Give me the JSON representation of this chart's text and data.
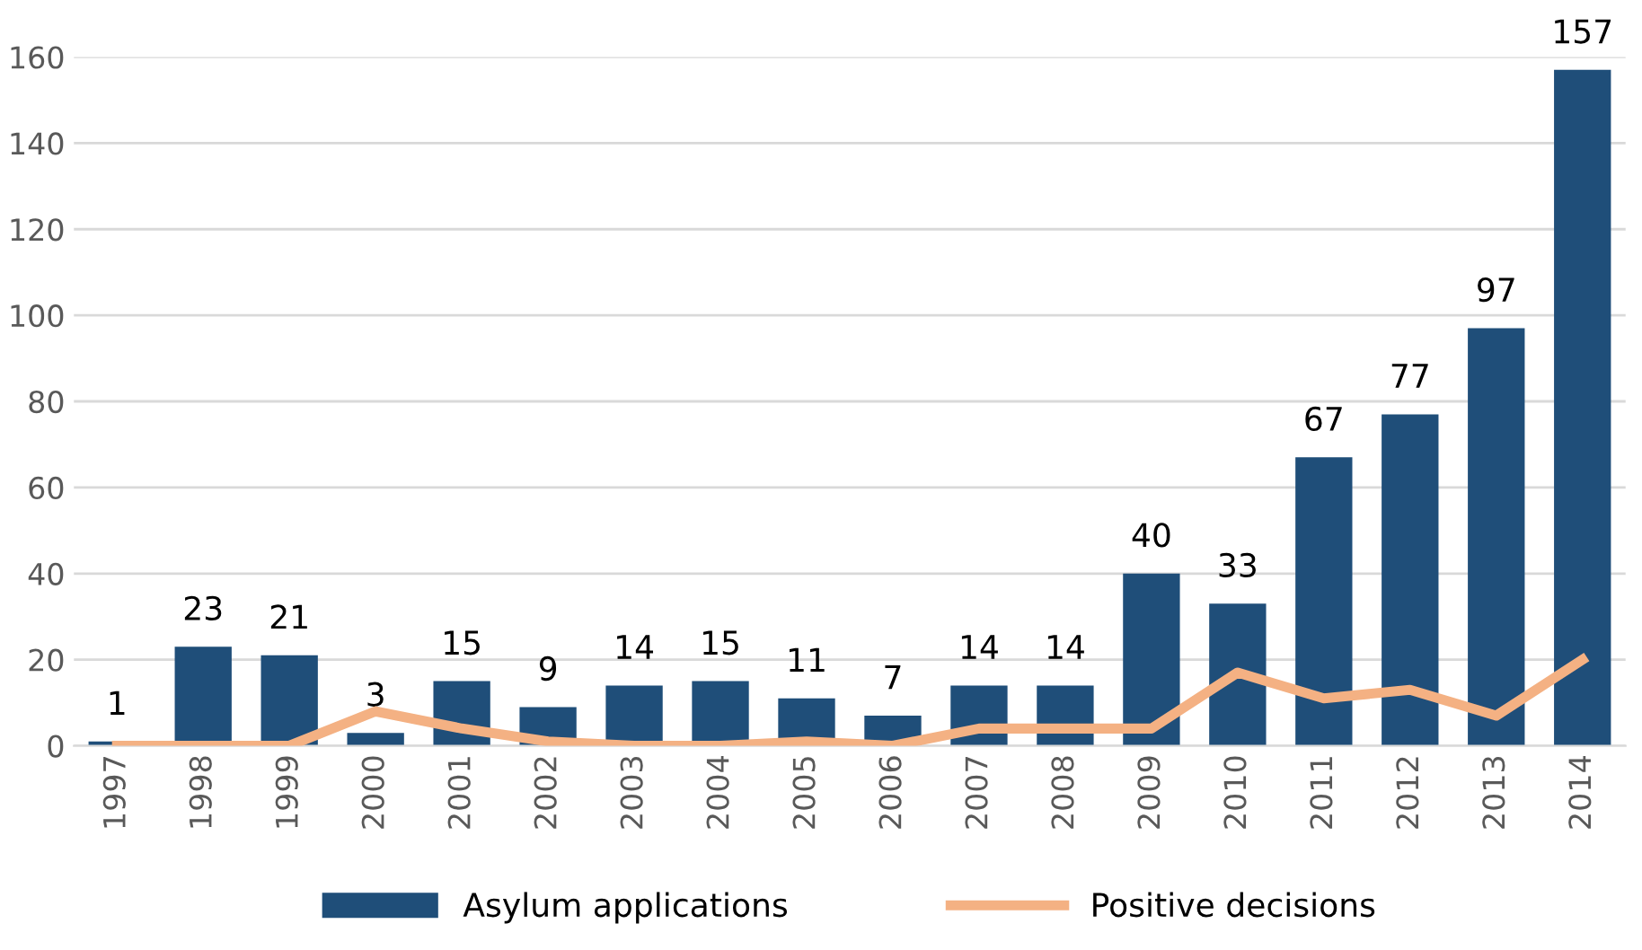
{
  "chart_data": {
    "type": "bar",
    "categories": [
      "1997",
      "1998",
      "1999",
      "2000",
      "2001",
      "2002",
      "2003",
      "2004",
      "2005",
      "2006",
      "2007",
      "2008",
      "2009",
      "2010",
      "2011",
      "2012",
      "2013",
      "2014"
    ],
    "series": [
      {
        "name": "Asylum applications",
        "color": "#1f4e79",
        "values": [
          1,
          23,
          21,
          3,
          15,
          9,
          14,
          15,
          11,
          7,
          14,
          14,
          40,
          33,
          67,
          77,
          97,
          157
        ],
        "value_labels": [
          "1",
          "23",
          "21",
          "3",
          "15",
          "9",
          "14",
          "15",
          "11",
          "7",
          "14",
          "14",
          "40",
          "33",
          "67",
          "77",
          "97",
          "157"
        ]
      },
      {
        "name": "Positive decisions",
        "type": "line",
        "color": "#f4b183",
        "values": [
          0,
          0,
          0,
          8,
          4,
          1,
          0,
          0,
          1,
          0,
          4,
          4,
          4,
          17,
          11,
          13,
          7,
          20
        ]
      }
    ],
    "ylim": [
      0,
      160
    ],
    "yticks": [
      0,
      20,
      40,
      60,
      80,
      100,
      120,
      140,
      160
    ],
    "grid": "y",
    "legend": "bottom"
  }
}
